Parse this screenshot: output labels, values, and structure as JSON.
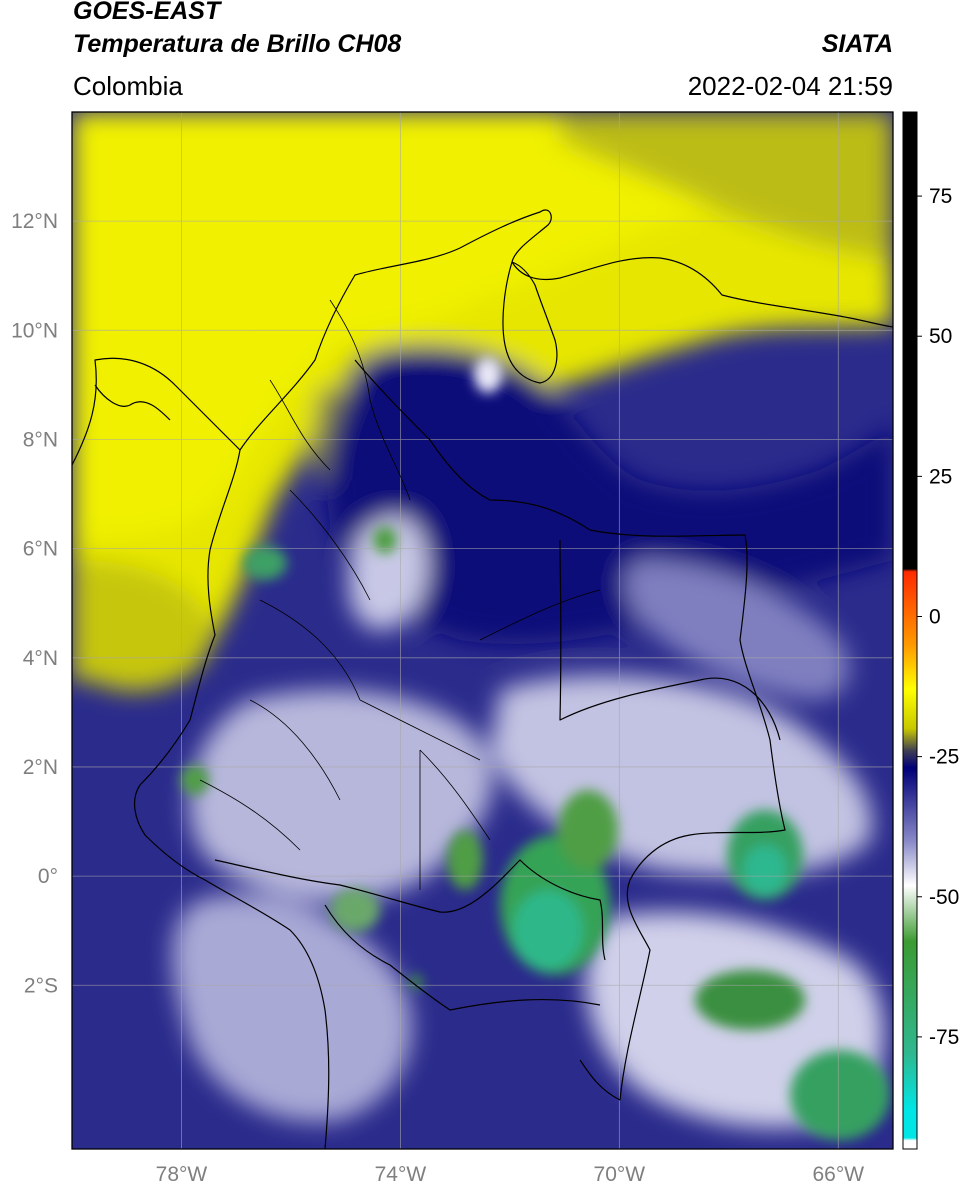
{
  "header": {
    "satellite": "GOES-EAST",
    "product": "Temperatura de Brillo CH08",
    "region": "Colombia",
    "organization": "SIATA",
    "timestamp": "2022-02-04 21:59"
  },
  "map": {
    "lon_range": [
      -80,
      -65
    ],
    "lat_range": [
      -5,
      14
    ],
    "lon_ticks": [
      "78°W",
      "74°W",
      "70°W",
      "66°W"
    ],
    "lat_ticks": [
      "12°N",
      "10°N",
      "8°N",
      "6°N",
      "4°N",
      "2°N",
      "0°",
      "2°S"
    ],
    "gridlines": true
  },
  "colorbar": {
    "ticks": [
      "75",
      "50",
      "25",
      "0",
      "-25",
      "-50",
      "-75"
    ],
    "tick_values": [
      75,
      50,
      25,
      0,
      -25,
      -50,
      -75
    ],
    "range": [
      -95,
      90
    ],
    "stops": [
      {
        "value": 90,
        "color": "#000000"
      },
      {
        "value": 8.5,
        "color": "#000000"
      },
      {
        "value": 8,
        "color": "#ff2a00"
      },
      {
        "value": -5,
        "color": "#ff9900"
      },
      {
        "value": -13,
        "color": "#ffff00"
      },
      {
        "value": -20,
        "color": "#c8c800"
      },
      {
        "value": -24,
        "color": "#3d3d55"
      },
      {
        "value": -27,
        "color": "#000078"
      },
      {
        "value": -40,
        "color": "#8888c8"
      },
      {
        "value": -48,
        "color": "#ffffff"
      },
      {
        "value": -58,
        "color": "#3c9b32"
      },
      {
        "value": -78,
        "color": "#2fb890"
      },
      {
        "value": -88,
        "color": "#00e6e6"
      },
      {
        "value": -93,
        "color": "#00e6e6"
      },
      {
        "value": -93.5,
        "color": "#ffffff"
      }
    ]
  }
}
